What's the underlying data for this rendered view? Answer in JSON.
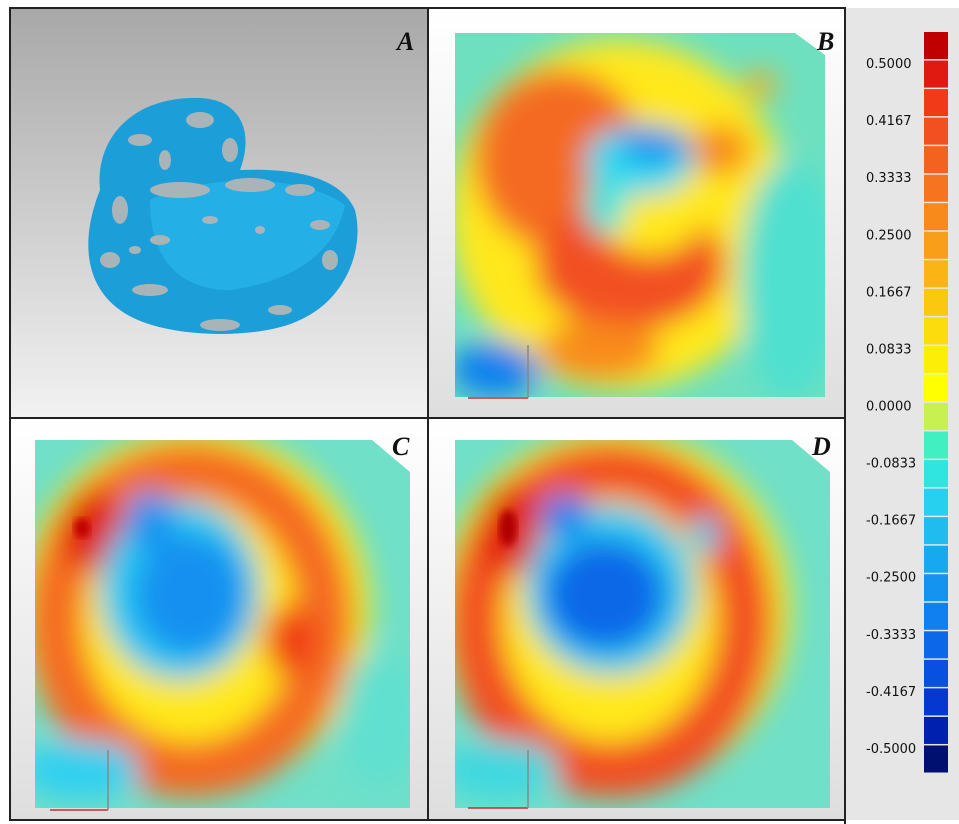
{
  "panels": [
    {
      "label": "A"
    },
    {
      "label": "B"
    },
    {
      "label": "C"
    },
    {
      "label": "D"
    }
  ],
  "colorbar": {
    "labels": [
      "0.5000",
      "0.4167",
      "0.3333",
      "0.2500",
      "0.1667",
      "0.0833",
      "0.0000",
      "-0.0833",
      "-0.1667",
      "-0.2500",
      "-0.3333",
      "-0.4167",
      "-0.5000"
    ],
    "colors": [
      "#c00000",
      "#e01a10",
      "#f03a18",
      "#f25020",
      "#f46220",
      "#f67420",
      "#f88a1c",
      "#f99e18",
      "#fab414",
      "#fbc810",
      "#fcdc0c",
      "#fdee08",
      "#ffff00",
      "#c8f050",
      "#40f0c0",
      "#30e4e0",
      "#28d0f0",
      "#20bcf0",
      "#18a8f0",
      "#1494f0",
      "#1080f0",
      "#0c68e8",
      "#0850e0",
      "#0438d0",
      "#0020b0",
      "#001070"
    ]
  }
}
